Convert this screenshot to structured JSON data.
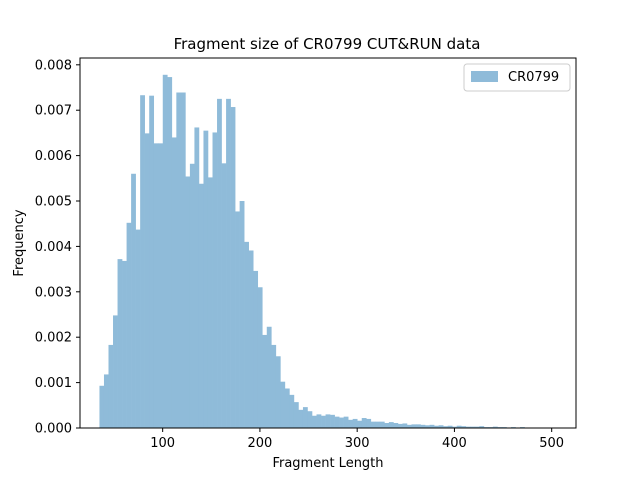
{
  "chart_data": {
    "type": "bar",
    "title": "Fragment size of CR0799 CUT&RUN data",
    "xlabel": "Fragment Length",
    "ylabel": "Frequency",
    "xlim": [
      15,
      525
    ],
    "ylim": [
      0,
      0.00815
    ],
    "xticks": [
      "100",
      "200",
      "300",
      "400",
      "500"
    ],
    "xtick_values": [
      100,
      200,
      300,
      400,
      500
    ],
    "yticks": [
      "0.000",
      "0.001",
      "0.002",
      "0.003",
      "0.004",
      "0.005",
      "0.006",
      "0.007",
      "0.008"
    ],
    "ytick_values": [
      0,
      0.001,
      0.002,
      0.003,
      0.004,
      0.005,
      0.006,
      0.007,
      0.008
    ],
    "legend_position": "top-right",
    "series": [
      {
        "name": "CR0799",
        "color": "#8fbbd9",
        "bin_edges_start": 35,
        "bin_width": 4.65,
        "values": [
          0.00093,
          0.00118,
          0.00183,
          0.00248,
          0.00372,
          0.00368,
          0.00452,
          0.0056,
          0.00437,
          0.00733,
          0.00649,
          0.00732,
          0.00627,
          0.00627,
          0.00778,
          0.00773,
          0.0064,
          0.00739,
          0.00739,
          0.00554,
          0.00582,
          0.00662,
          0.00538,
          0.00655,
          0.00552,
          0.00651,
          0.00725,
          0.00583,
          0.00725,
          0.00707,
          0.00477,
          0.005,
          0.0041,
          0.00391,
          0.00346,
          0.0031,
          0.00205,
          0.00223,
          0.00183,
          0.00158,
          0.00102,
          0.00087,
          0.00073,
          0.00057,
          0.0004,
          0.00046,
          0.00037,
          0.00027,
          0.0003,
          0.00027,
          0.0003,
          0.00029,
          0.00025,
          0.00023,
          0.00025,
          0.00018,
          0.0002,
          0.00016,
          0.00022,
          0.0002,
          0.00014,
          0.00014,
          0.00014,
          0.00011,
          0.00013,
          0.00011,
          9e-05,
          0.0001,
          7e-05,
          8e-05,
          8e-05,
          7e-05,
          6e-05,
          7e-05,
          5e-05,
          6e-05,
          4e-05,
          5e-05,
          3e-05,
          5e-05,
          4e-05,
          3e-05,
          3e-05,
          3e-05,
          4e-05,
          2e-05,
          2e-05,
          3e-05,
          2e-05,
          2e-05,
          1e-05,
          2e-05,
          1e-05,
          2e-05,
          1e-05,
          1e-05,
          1e-05
        ]
      }
    ]
  }
}
